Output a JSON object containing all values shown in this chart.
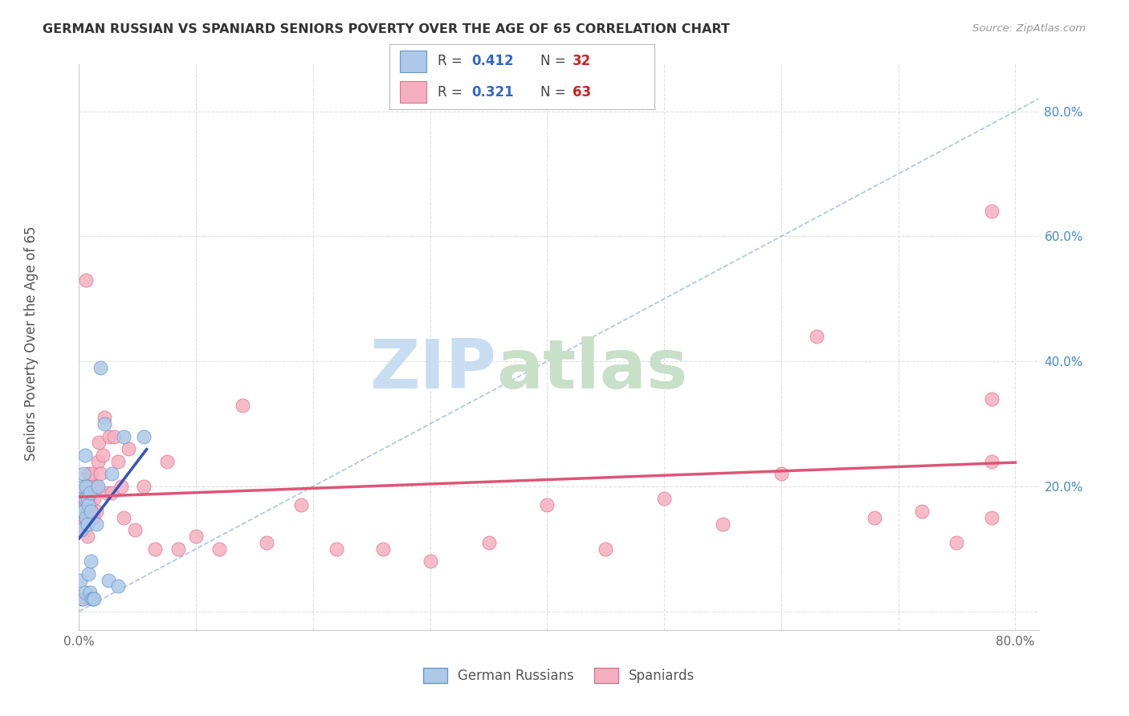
{
  "title": "GERMAN RUSSIAN VS SPANIARD SENIORS POVERTY OVER THE AGE OF 65 CORRELATION CHART",
  "source": "Source: ZipAtlas.com",
  "ylabel": "Seniors Poverty Over the Age of 65",
  "xlim": [
    0.0,
    0.82
  ],
  "ylim": [
    -0.03,
    0.875
  ],
  "xticks": [
    0.0,
    0.1,
    0.2,
    0.3,
    0.4,
    0.5,
    0.6,
    0.7,
    0.8
  ],
  "xticklabels": [
    "0.0%",
    "",
    "",
    "",
    "",
    "",
    "",
    "",
    "80.0%"
  ],
  "ytick_positions": [
    0.0,
    0.2,
    0.4,
    0.6,
    0.8
  ],
  "ytick_labels": [
    "",
    "20.0%",
    "40.0%",
    "60.0%",
    "80.0%"
  ],
  "german_russian_R": 0.412,
  "german_russian_N": 32,
  "spaniard_R": 0.321,
  "spaniard_N": 63,
  "german_russian_color": "#adc8e8",
  "german_russian_edge": "#6699cc",
  "spaniard_color": "#f5afc0",
  "spaniard_edge": "#e07090",
  "trend_blue": "#3355bb",
  "trend_pink": "#dd5577",
  "diagonal_color": "#99bbdd",
  "background_color": "#ffffff",
  "grid_color": "#e0e0e0",
  "german_russian_x": [
    0.001,
    0.002,
    0.002,
    0.003,
    0.003,
    0.004,
    0.004,
    0.005,
    0.005,
    0.005,
    0.006,
    0.006,
    0.007,
    0.007,
    0.008,
    0.008,
    0.009,
    0.009,
    0.01,
    0.01,
    0.011,
    0.012,
    0.013,
    0.015,
    0.016,
    0.018,
    0.022,
    0.025,
    0.028,
    0.033,
    0.038,
    0.055
  ],
  "german_russian_y": [
    0.05,
    0.13,
    0.16,
    0.02,
    0.2,
    0.16,
    0.22,
    0.25,
    0.18,
    0.03,
    0.15,
    0.2,
    0.18,
    0.14,
    0.17,
    0.06,
    0.19,
    0.03,
    0.16,
    0.08,
    0.02,
    0.02,
    0.02,
    0.14,
    0.2,
    0.39,
    0.3,
    0.05,
    0.22,
    0.04,
    0.28,
    0.28
  ],
  "spaniard_x": [
    0.001,
    0.002,
    0.003,
    0.003,
    0.004,
    0.005,
    0.005,
    0.006,
    0.006,
    0.007,
    0.007,
    0.008,
    0.008,
    0.009,
    0.009,
    0.01,
    0.01,
    0.011,
    0.011,
    0.012,
    0.013,
    0.014,
    0.015,
    0.016,
    0.017,
    0.018,
    0.02,
    0.022,
    0.024,
    0.026,
    0.028,
    0.03,
    0.033,
    0.036,
    0.038,
    0.042,
    0.048,
    0.055,
    0.065,
    0.075,
    0.085,
    0.1,
    0.12,
    0.14,
    0.16,
    0.19,
    0.22,
    0.26,
    0.3,
    0.35,
    0.4,
    0.45,
    0.5,
    0.55,
    0.6,
    0.63,
    0.68,
    0.72,
    0.75,
    0.78,
    0.78,
    0.78,
    0.78
  ],
  "spaniard_y": [
    0.14,
    0.16,
    0.02,
    0.13,
    0.18,
    0.17,
    0.15,
    0.2,
    0.53,
    0.12,
    0.19,
    0.22,
    0.15,
    0.2,
    0.17,
    0.18,
    0.21,
    0.16,
    0.22,
    0.15,
    0.18,
    0.2,
    0.16,
    0.24,
    0.27,
    0.22,
    0.25,
    0.31,
    0.19,
    0.28,
    0.19,
    0.28,
    0.24,
    0.2,
    0.15,
    0.26,
    0.13,
    0.2,
    0.1,
    0.24,
    0.1,
    0.12,
    0.1,
    0.33,
    0.11,
    0.17,
    0.1,
    0.1,
    0.08,
    0.11,
    0.17,
    0.1,
    0.18,
    0.14,
    0.22,
    0.44,
    0.15,
    0.16,
    0.11,
    0.64,
    0.24,
    0.34,
    0.15
  ]
}
